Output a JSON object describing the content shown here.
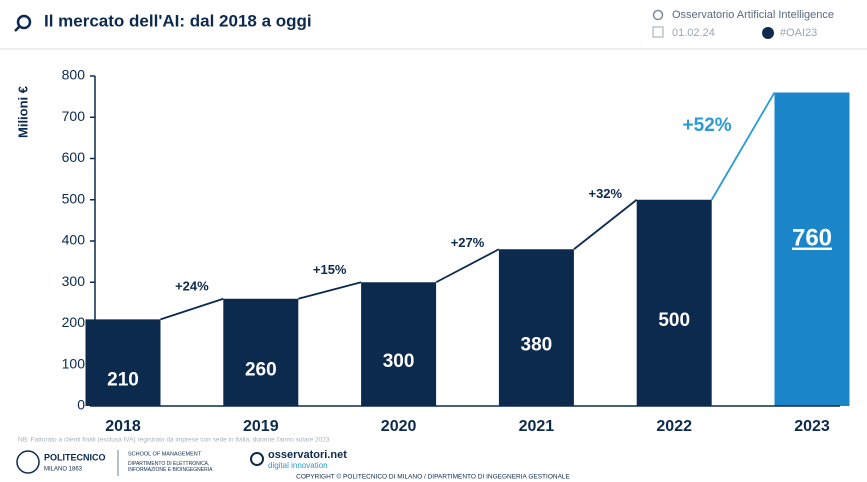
{
  "header": {
    "title": "Il mercato dell'AI: dal 2018 a oggi",
    "source": "Osservatorio Artificial Intelligence",
    "date": "01.02.24",
    "hashtag": "#OAI23"
  },
  "chart_data": {
    "type": "bar",
    "y_label": "Milioni €",
    "categories": [
      "2018",
      "2019",
      "2020",
      "2021",
      "2022",
      "2023"
    ],
    "values": [
      210,
      260,
      300,
      380,
      500,
      760
    ],
    "colors": [
      "#0c2a4e",
      "#0c2a4e",
      "#0c2a4e",
      "#0c2a4e",
      "#0c2a4e",
      "#1a86c9"
    ],
    "annotations": [
      {
        "text": "+24%",
        "color": "#0c2a4e"
      },
      {
        "text": "+15%",
        "color": "#0c2a4e"
      },
      {
        "text": "+27%",
        "color": "#0c2a4e"
      },
      {
        "text": "+32%",
        "color": "#0c2a4e"
      },
      {
        "text": "+52%",
        "color": "#2a9ad8"
      }
    ],
    "ylim": [
      0,
      800
    ],
    "yticks": [
      0,
      100,
      200,
      300,
      400,
      500,
      600,
      700,
      800
    ]
  },
  "footer": {
    "note": "NB: Fatturato a clienti finali (esclusa IVA) registrato da imprese con sede in Italia, durante l'anno solare 2023",
    "university": "POLITECNICO",
    "university_sub": "MILANO 1863",
    "school": "SCHOOL OF MANAGEMENT",
    "department": "DIPARTIMENTO DI ELETTRONICA, INFORMAZIONE E BIOINGEGNERIA",
    "brand": "osservatori.net",
    "brand_sub": "digital innovation",
    "copyright": "COPYRIGHT © POLITECNICO DI MILANO / DIPARTIMENTO DI INGEGNERIA GESTIONALE"
  }
}
